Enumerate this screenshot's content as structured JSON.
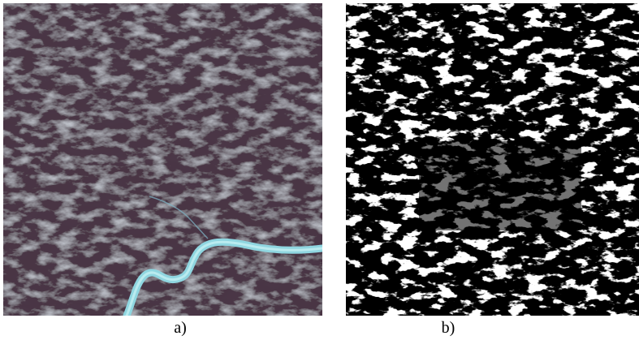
{
  "figure": {
    "panels": [
      {
        "caption": "a)",
        "kind": "satellite-rgb-image",
        "colors": {
          "base": "#4a3644",
          "dark": "#231b25",
          "cloud": "#c9dbe8",
          "river": "#8fd6e0"
        }
      },
      {
        "caption": "b)",
        "kind": "binary-cloud-mask",
        "colors": {
          "background": "#000000",
          "mask": "#ffffff"
        }
      }
    ]
  }
}
